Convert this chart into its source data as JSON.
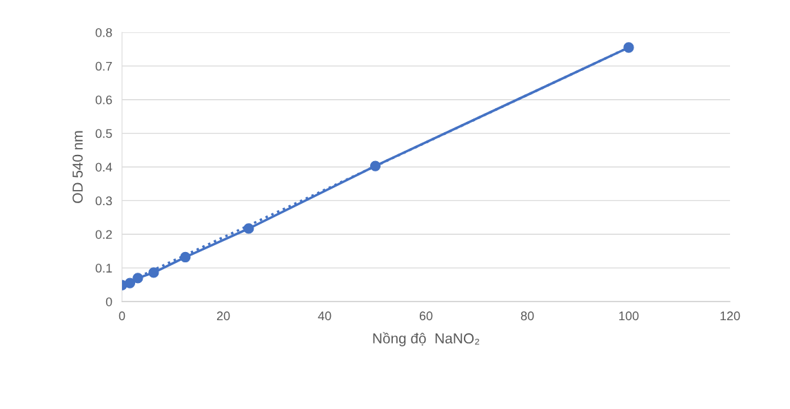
{
  "chart_data": {
    "type": "line",
    "xlabel": "Nồng độ  NaNO₂",
    "ylabel": "OD 540 nm",
    "series": [
      {
        "color": "#4472c4",
        "x": [
          0,
          1.5625,
          3.125,
          6.25,
          12.5,
          25,
          50,
          100
        ],
        "values": [
          0.049,
          0.055,
          0.07,
          0.086,
          0.132,
          0.217,
          0.403,
          0.755
        ],
        "marker": "circle",
        "line_style": "solid"
      },
      {
        "type": "line",
        "color": "#4472c4",
        "x": [
          0,
          100
        ],
        "values": [
          0.05,
          0.755
        ],
        "marker": "none",
        "line_style": "dotted"
      }
    ],
    "xlim": [
      0,
      120
    ],
    "xticks": [
      0,
      20,
      40,
      60,
      80,
      100,
      120
    ],
    "ylim": [
      0,
      0.8
    ],
    "yticks": [
      0,
      0.1,
      0.2,
      0.3,
      0.4,
      0.5,
      0.6,
      0.7,
      0.8
    ],
    "grid": "y",
    "legend": false
  }
}
